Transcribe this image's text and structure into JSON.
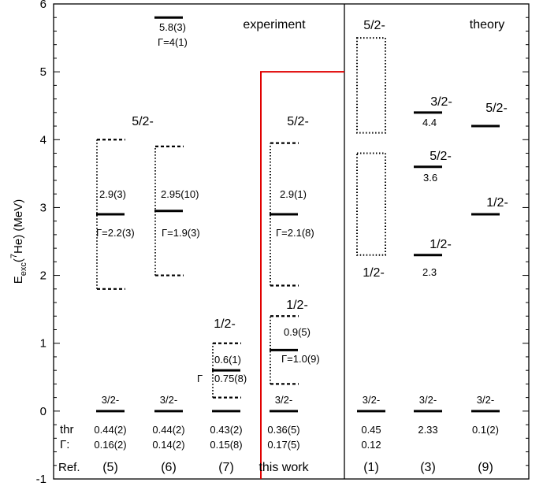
{
  "chart_data": {
    "type": "level-scheme",
    "ylabel": "E_exc(7He) (MeV)",
    "ylabel_parts": {
      "pre": "E",
      "sub": "exc",
      "mid": "(",
      "sup": "7",
      "post": "He) (MeV)"
    },
    "ylim": [
      -1,
      6
    ],
    "y_ticks": [
      "-1",
      "0",
      "1",
      "2",
      "3",
      "4",
      "5",
      "6"
    ],
    "y_tick_values": [
      -1,
      0,
      1,
      2,
      3,
      4,
      5,
      6
    ],
    "section_labels": {
      "experiment": "experiment",
      "theory": "theory"
    },
    "row_labels": {
      "thr": "thr",
      "gamma": "Γ:",
      "ref": "Ref."
    },
    "columns": [
      {
        "ref": "(5)",
        "thr": "0.44(2)",
        "gamma": "0.16(2)",
        "ground_label": "3/2-",
        "states": [
          {
            "energy": 2.9,
            "low": 1.8,
            "high": 4.0,
            "spin": "5/2-",
            "energy_text": "2.9(3)",
            "width_text": "Γ=2.2(3)"
          }
        ]
      },
      {
        "ref": "(6)",
        "thr": "0.44(2)",
        "gamma": "0.14(2)",
        "ground_label": "3/2-",
        "states": [
          {
            "energy": 2.95,
            "low": 2.0,
            "high": 3.9,
            "spin": "5/2-",
            "energy_text": "2.95(10)",
            "width_text": "Γ=1.9(3)"
          },
          {
            "energy": 5.8,
            "energy_text": "5.8(3)",
            "width_text": "Γ=4(1)"
          }
        ]
      },
      {
        "ref": "(7)",
        "thr": "0.43(2)",
        "gamma": "0.15(8)",
        "ground_label": "",
        "states": [
          {
            "energy": 0.6,
            "low": 0.2,
            "high": 1.0,
            "spin": "1/2-",
            "energy_text": "0.6(1)",
            "width_text": "0.75(8)",
            "width_prefix": "Γ"
          }
        ]
      },
      {
        "ref": "this work",
        "thr": "0.36(5)",
        "gamma": "0.17(5)",
        "ground_label": "3/2-",
        "states": [
          {
            "energy": 2.9,
            "low": 1.85,
            "high": 3.95,
            "spin": "5/2-",
            "energy_text": "2.9(1)",
            "width_text": "Γ=2.1(8)"
          },
          {
            "energy": 0.9,
            "low": 0.4,
            "high": 1.4,
            "spin": "1/2-",
            "energy_text": "0.9(5)",
            "width_text": "Γ=1.0(9)"
          }
        ]
      },
      {
        "ref": "(1)",
        "thr": "0.45",
        "gamma": "0.12",
        "ground_label": "3/2-",
        "states": [
          {
            "low": 4.1,
            "high": 5.5,
            "spin": "5/2-"
          },
          {
            "low": 2.3,
            "high": 3.8,
            "spin": "1/2-"
          }
        ]
      },
      {
        "ref": "(3)",
        "thr": "2.33",
        "gamma": "",
        "ground_label": "3/2-",
        "states": [
          {
            "energy": 4.4,
            "spin": "3/2-",
            "energy_text": "4.4"
          },
          {
            "energy": 3.6,
            "spin": "5/2-",
            "energy_text": "3.6"
          },
          {
            "energy": 2.3,
            "spin": "1/2-",
            "energy_text": "2.3"
          }
        ]
      },
      {
        "ref": "(9)",
        "thr": "0.1(2)",
        "gamma": "",
        "ground_label": "3/2-",
        "states": [
          {
            "energy": 4.2,
            "spin": "5/2-"
          },
          {
            "energy": 2.9,
            "spin": "1/2-"
          }
        ]
      }
    ],
    "highlight": {
      "column": "this work",
      "color": "#e00000",
      "energy": 5.0
    },
    "colors": {
      "axis": "#000000",
      "levels": "#000000",
      "highlight": "#e00000"
    }
  }
}
